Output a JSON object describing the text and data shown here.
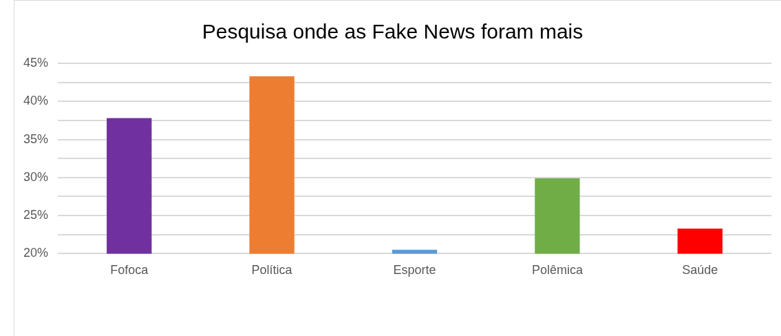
{
  "chart_data": {
    "type": "bar",
    "title": "Pesquisa onde as Fake News foram mais",
    "categories": [
      "Fofoca",
      "Política",
      "Esporte",
      "Polêmica",
      "Saúde"
    ],
    "values": [
      37.8,
      43.3,
      20.5,
      29.9,
      23.3
    ],
    "colors": [
      "#7030a0",
      "#ed7d31",
      "#5b9bd5",
      "#70ad47",
      "#ff0000"
    ],
    "ylim": [
      20,
      45
    ],
    "yticks": [
      {
        "value": 20,
        "label": "20%"
      },
      {
        "value": 22.5,
        "label": null
      },
      {
        "value": 25,
        "label": "25%"
      },
      {
        "value": 27.5,
        "label": null
      },
      {
        "value": 30,
        "label": "30%"
      },
      {
        "value": 32.5,
        "label": null
      },
      {
        "value": 35,
        "label": "35%"
      },
      {
        "value": 37.5,
        "label": null
      },
      {
        "value": 40,
        "label": "40%"
      },
      {
        "value": 42.5,
        "label": null
      },
      {
        "value": 45,
        "label": "45%"
      }
    ],
    "grid": "y",
    "legend": false
  }
}
